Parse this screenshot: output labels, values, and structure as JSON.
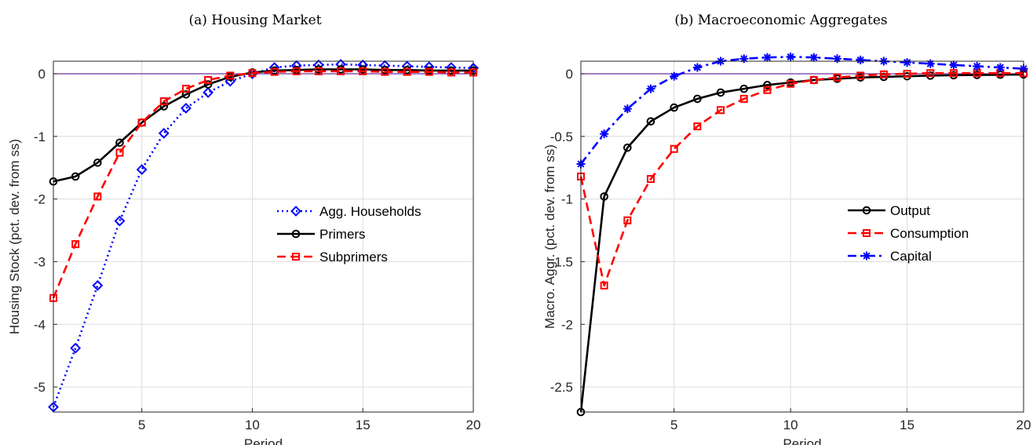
{
  "figure": {
    "panels": [
      {
        "title": "(a) Housing Market"
      },
      {
        "title": "(b) Macroeconomic Aggregates"
      }
    ]
  },
  "chart_data": [
    {
      "type": "line",
      "title": "(a) Housing Market",
      "xlabel": "Period",
      "ylabel": "Housing Stock (pct. dev. from ss)",
      "xlim": [
        1,
        20
      ],
      "ylim": [
        -5.4,
        0.2
      ],
      "xticks": [
        5,
        10,
        15,
        20
      ],
      "yticks": [
        0,
        -1,
        -2,
        -3,
        -4,
        -5
      ],
      "grid": true,
      "legend_position": "right",
      "zero_line_color": "#7030a0",
      "x": [
        1,
        2,
        3,
        4,
        5,
        6,
        7,
        8,
        9,
        10,
        11,
        12,
        13,
        14,
        15,
        16,
        17,
        18,
        19,
        20
      ],
      "series": [
        {
          "name": "Agg. Households",
          "color": "#0000ff",
          "line": "dotted",
          "marker": "diamond",
          "values": [
            -5.32,
            -4.38,
            -3.38,
            -2.35,
            -1.53,
            -0.95,
            -0.55,
            -0.3,
            -0.12,
            0.0,
            0.1,
            0.13,
            0.14,
            0.15,
            0.14,
            0.13,
            0.12,
            0.11,
            0.1,
            0.09
          ]
        },
        {
          "name": "Primers",
          "color": "#000000",
          "line": "solid",
          "marker": "circle",
          "values": [
            -1.72,
            -1.64,
            -1.42,
            -1.1,
            -0.78,
            -0.52,
            -0.33,
            -0.17,
            -0.05,
            0.02,
            0.05,
            0.06,
            0.07,
            0.07,
            0.07,
            0.06,
            0.06,
            0.05,
            0.05,
            0.05
          ]
        },
        {
          "name": "Subprimers",
          "color": "#ff0000",
          "line": "dashed",
          "marker": "square",
          "values": [
            -3.58,
            -2.72,
            -1.96,
            -1.26,
            -0.78,
            -0.44,
            -0.24,
            -0.1,
            -0.03,
            0.01,
            0.03,
            0.04,
            0.04,
            0.04,
            0.04,
            0.03,
            0.03,
            0.03,
            0.02,
            0.02
          ]
        }
      ]
    },
    {
      "type": "line",
      "title": "(b) Macroeconomic Aggregates",
      "xlabel": "Period",
      "ylabel": "Macro. Aggr. (pct. dev. from ss)",
      "xlim": [
        1,
        20
      ],
      "ylim": [
        -2.7,
        0.1
      ],
      "xticks": [
        5,
        10,
        15,
        20
      ],
      "yticks": [
        0,
        -0.5,
        -1,
        -1.5,
        -2,
        -2.5
      ],
      "grid": true,
      "legend_position": "right",
      "zero_line_color": "#7030a0",
      "x": [
        1,
        2,
        3,
        4,
        5,
        6,
        7,
        8,
        9,
        10,
        11,
        12,
        13,
        14,
        15,
        16,
        17,
        18,
        19,
        20
      ],
      "series": [
        {
          "name": "Output",
          "color": "#000000",
          "line": "solid",
          "marker": "circle",
          "values": [
            -2.7,
            -0.98,
            -0.59,
            -0.38,
            -0.27,
            -0.2,
            -0.15,
            -0.12,
            -0.09,
            -0.07,
            -0.05,
            -0.04,
            -0.03,
            -0.025,
            -0.02,
            -0.015,
            -0.012,
            -0.01,
            -0.008,
            -0.006
          ]
        },
        {
          "name": "Consumption",
          "color": "#ff0000",
          "line": "dashed",
          "marker": "square",
          "values": [
            -0.82,
            -1.69,
            -1.17,
            -0.84,
            -0.6,
            -0.42,
            -0.29,
            -0.2,
            -0.13,
            -0.08,
            -0.05,
            -0.03,
            -0.015,
            -0.005,
            0.0,
            0.005,
            0.005,
            0.005,
            0.005,
            0.005
          ]
        },
        {
          "name": "Capital",
          "color": "#0000ff",
          "line": "dashdot",
          "marker": "asterisk",
          "values": [
            -0.72,
            -0.48,
            -0.28,
            -0.12,
            -0.02,
            0.05,
            0.1,
            0.12,
            0.13,
            0.135,
            0.13,
            0.12,
            0.11,
            0.1,
            0.09,
            0.08,
            0.07,
            0.06,
            0.05,
            0.04
          ]
        }
      ]
    }
  ]
}
